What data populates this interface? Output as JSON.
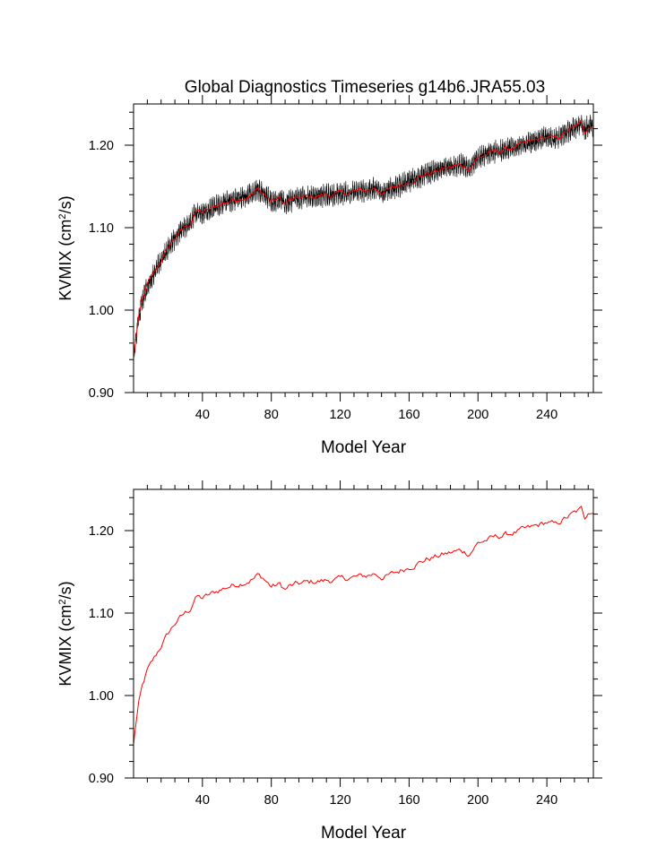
{
  "figure_title": "Global Diagnostics Timeseries g14b6.JRA55.03",
  "chart_data": [
    {
      "type": "line",
      "panel": "top",
      "title": "Global Diagnostics Timeseries g14b6.JRA55.03",
      "xlabel": "Model Year",
      "ylabel_main": "KVMIX (cm",
      "ylabel_sup": "2",
      "ylabel_tail": "/s)",
      "xlim": [
        0,
        267
      ],
      "ylim": [
        0.9,
        1.25
      ],
      "xticks": [
        40,
        80,
        120,
        160,
        200,
        240
      ],
      "xtick_labels": [
        "40",
        "80",
        "120",
        "160",
        "200",
        "240"
      ],
      "yticks": [
        0.9,
        1.0,
        1.1,
        1.2
      ],
      "ytick_labels": [
        "0.90",
        "1.00",
        "1.10",
        "1.20"
      ],
      "series": [
        {
          "name": "monthly",
          "color": "#000000",
          "noise_amplitude": 0.012
        },
        {
          "name": "annual mean",
          "color": "#ff0000"
        }
      ],
      "annual_mean_anchors": {
        "x": [
          0,
          1,
          3,
          5,
          8,
          12,
          16,
          20,
          25,
          30,
          33,
          35,
          37,
          40,
          45,
          50,
          55,
          60,
          65,
          70,
          72,
          75,
          80,
          85,
          88,
          90,
          95,
          100,
          110,
          120,
          130,
          135,
          140,
          145,
          150,
          160,
          170,
          180,
          190,
          195,
          200,
          210,
          220,
          230,
          240,
          245,
          250,
          255,
          260,
          262,
          264,
          267
        ],
        "y": [
          0.94,
          0.96,
          0.99,
          1.01,
          1.03,
          1.045,
          1.06,
          1.075,
          1.09,
          1.1,
          1.105,
          1.115,
          1.12,
          1.118,
          1.123,
          1.128,
          1.132,
          1.135,
          1.138,
          1.142,
          1.146,
          1.143,
          1.132,
          1.135,
          1.128,
          1.132,
          1.135,
          1.137,
          1.139,
          1.141,
          1.144,
          1.145,
          1.148,
          1.143,
          1.147,
          1.156,
          1.165,
          1.171,
          1.176,
          1.172,
          1.185,
          1.192,
          1.197,
          1.203,
          1.21,
          1.207,
          1.214,
          1.22,
          1.226,
          1.216,
          1.224,
          1.222
        ]
      }
    },
    {
      "type": "line",
      "panel": "bottom",
      "xlabel": "Model Year",
      "ylabel_main": "KVMIX (cm",
      "ylabel_sup": "2",
      "ylabel_tail": "/s)",
      "xlim": [
        0,
        267
      ],
      "ylim": [
        0.9,
        1.25
      ],
      "xticks": [
        40,
        80,
        120,
        160,
        200,
        240
      ],
      "xtick_labels": [
        "40",
        "80",
        "120",
        "160",
        "200",
        "240"
      ],
      "yticks": [
        0.9,
        1.0,
        1.1,
        1.2
      ],
      "ytick_labels": [
        "0.90",
        "1.00",
        "1.10",
        "1.20"
      ],
      "series": [
        {
          "name": "annual mean",
          "color": "#ff0000"
        }
      ],
      "annual_mean_anchors": {
        "x": [
          0,
          1,
          3,
          5,
          8,
          12,
          16,
          20,
          25,
          30,
          33,
          35,
          37,
          40,
          45,
          50,
          55,
          60,
          65,
          70,
          72,
          75,
          80,
          85,
          88,
          90,
          95,
          100,
          110,
          120,
          130,
          135,
          140,
          145,
          150,
          160,
          170,
          180,
          190,
          195,
          200,
          210,
          220,
          230,
          240,
          245,
          250,
          255,
          260,
          262,
          264,
          267
        ],
        "y": [
          0.94,
          0.96,
          0.99,
          1.01,
          1.03,
          1.045,
          1.06,
          1.075,
          1.09,
          1.1,
          1.105,
          1.115,
          1.12,
          1.118,
          1.123,
          1.128,
          1.132,
          1.135,
          1.138,
          1.142,
          1.146,
          1.143,
          1.132,
          1.135,
          1.128,
          1.132,
          1.135,
          1.137,
          1.139,
          1.141,
          1.144,
          1.145,
          1.148,
          1.143,
          1.147,
          1.156,
          1.165,
          1.171,
          1.176,
          1.172,
          1.185,
          1.192,
          1.197,
          1.203,
          1.21,
          1.207,
          1.214,
          1.22,
          1.226,
          1.216,
          1.224,
          1.222
        ]
      }
    }
  ]
}
